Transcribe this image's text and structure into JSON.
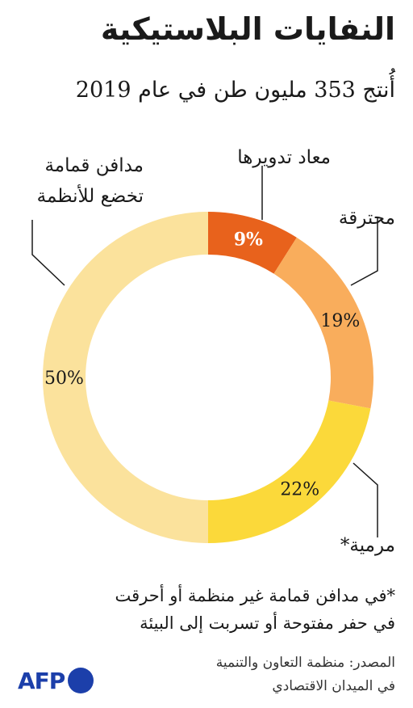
{
  "header": {
    "title": "النفايات البلاستيكية",
    "subtitle": "أُنتج 353 مليون طن في عام 2019"
  },
  "chart_data": {
    "type": "pie",
    "variant": "donut",
    "start_angle_deg": 0,
    "direction": "clockwise",
    "slices": [
      {
        "label": "معاد تدويرها",
        "value": 9,
        "display": "9%",
        "color": "#e8621c",
        "bold": true
      },
      {
        "label": "محترقة",
        "value": 19,
        "display": "19%",
        "color": "#f9ad5c",
        "bold": false
      },
      {
        "label": "مرمية*",
        "value": 22,
        "display": "22%",
        "color": "#fbd93a",
        "bold": false
      },
      {
        "label": "مدافن قمامة\nتخضع للأنظمة",
        "value": 50,
        "display": "50%",
        "color": "#fbe29c",
        "bold": false
      }
    ]
  },
  "footnote": {
    "lines": [
      "*في مدافن قمامة غير منظمة أو أحرقت",
      "في حفر مفتوحة أو تسربت إلى البيئة"
    ]
  },
  "source": {
    "lines": [
      "المصدر: منظمة التعاون والتنمية",
      "في الميدان الاقتصادي"
    ]
  },
  "logo": {
    "text": "AFP",
    "color": "#1c3faa"
  }
}
